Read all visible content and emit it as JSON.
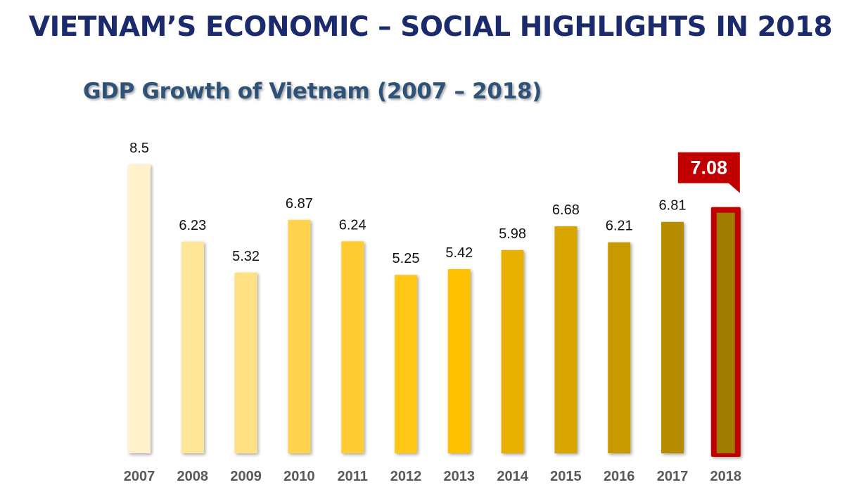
{
  "header": {
    "title": "VIETNAM’S ECONOMIC – SOCIAL HIGHLIGHTS IN 2018"
  },
  "chart_data": {
    "type": "bar",
    "title": "GDP Growth of Vietnam (2007 – 2018)",
    "xlabel": "",
    "ylabel": "",
    "categories": [
      "2007",
      "2008",
      "2009",
      "2010",
      "2011",
      "2012",
      "2013",
      "2014",
      "2015",
      "2016",
      "2017",
      "2018"
    ],
    "values": [
      8.5,
      6.23,
      5.32,
      6.87,
      6.24,
      5.25,
      5.42,
      5.98,
      6.68,
      6.21,
      6.81,
      7.08
    ],
    "value_labels": [
      "8.5",
      "6.23",
      "5.32",
      "6.87",
      "6.24",
      "5.25",
      "5.42",
      "5.98",
      "6.68",
      "6.21",
      "6.81",
      "7.08"
    ],
    "ylim": [
      0,
      8.5
    ],
    "grid": false,
    "legend": "none",
    "highlight": {
      "category": "2018",
      "label": "7.08",
      "color": "#c00000"
    },
    "bar_colors": [
      "#fff2cc",
      "#ffe699",
      "#ffe084",
      "#ffd34d",
      "#ffcd33",
      "#ffc718",
      "#ffc000",
      "#e8b000",
      "#d9a500",
      "#c99a00",
      "#b58b00",
      "#a07c00"
    ]
  }
}
